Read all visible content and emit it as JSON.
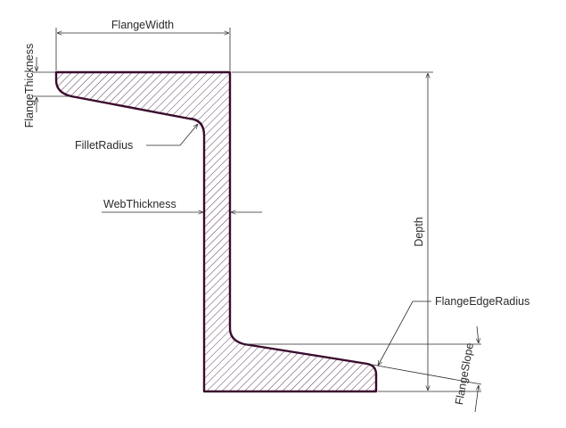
{
  "labels": {
    "flange_width": "FlangeWidth",
    "flange_thickness": "FlangeThickness",
    "fillet_radius": "FilletRadius",
    "web_thickness": "WebThickness",
    "depth": "Depth",
    "flange_edge_radius": "FlangeEdgeRadius",
    "flange_slope": "FlangeSlope"
  },
  "colors": {
    "outline": "#3b0b2e",
    "hatch": "#3b0b2e",
    "dimension": "#2a2a2a",
    "background": "#ffffff"
  }
}
